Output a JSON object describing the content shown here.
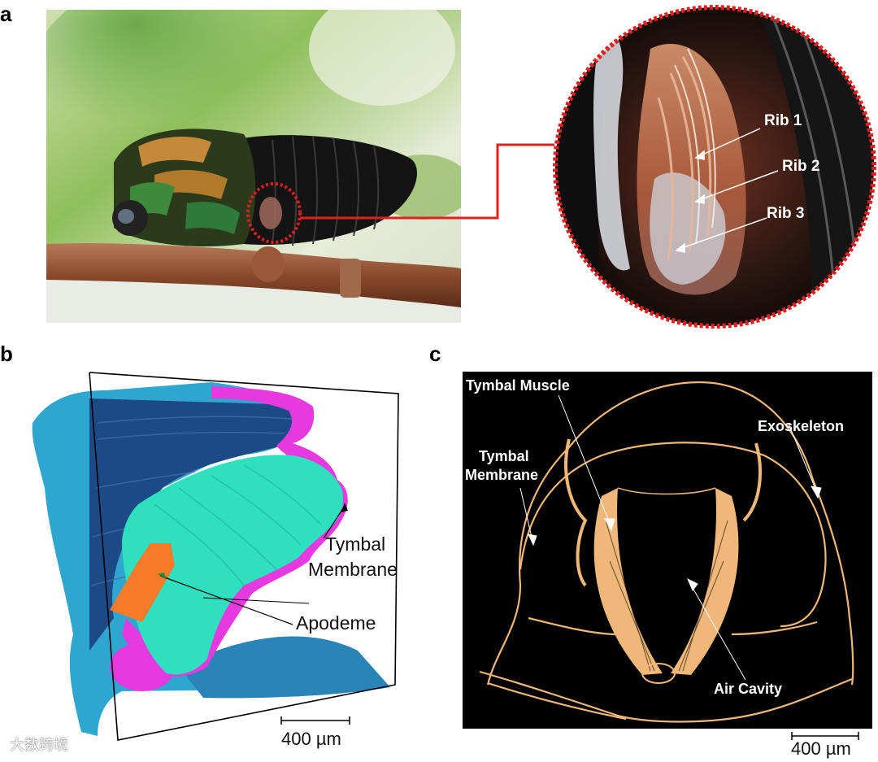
{
  "panels": {
    "a": {
      "letter": "a",
      "inset_labels": [
        "Rib 1",
        "Rib 2",
        "Rib 3"
      ]
    },
    "b": {
      "letter": "b",
      "labels": {
        "tymbal": "Tymbal",
        "membrane": "Membrane",
        "apodeme": "Apodeme"
      },
      "scale_bar": "400 µm"
    },
    "c": {
      "letter": "c",
      "labels": {
        "tymbal_muscle": "Tymbal Muscle",
        "exoskeleton": "Exoskeleton",
        "tymbal_membrane_1": "Tymbal",
        "tymbal_membrane_2": "Membrane",
        "air_cavity": "Air Cavity"
      },
      "scale_bar": "400 µm"
    }
  },
  "watermark": "大数跨境"
}
